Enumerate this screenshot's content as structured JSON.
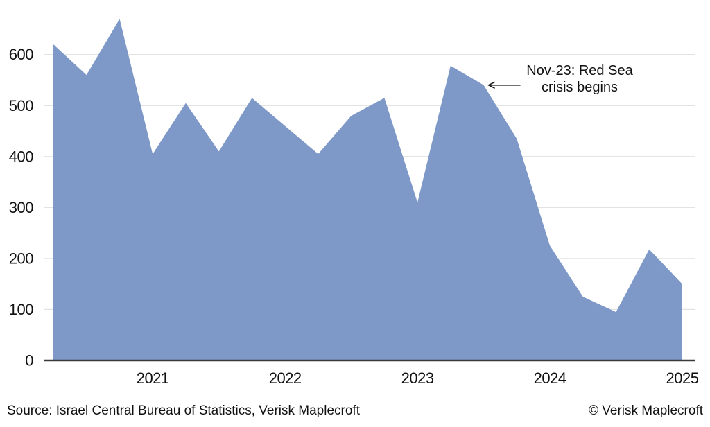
{
  "chart_data": {
    "type": "area",
    "title": "",
    "xlabel": "",
    "ylabel": "",
    "x": [
      "2020-Q2",
      "2020-Q3",
      "2020-Q4",
      "2021-Q1",
      "2021-Q2",
      "2021-Q3",
      "2021-Q4",
      "2022-Q1",
      "2022-Q2",
      "2022-Q3",
      "2022-Q4",
      "2023-Q1",
      "2023-Q2",
      "2023-Q3",
      "2023-Q4",
      "2024-Q1",
      "2024-Q2",
      "2024-Q3",
      "2024-Q4",
      "2025-Q1"
    ],
    "values": [
      620,
      560,
      670,
      405,
      505,
      410,
      515,
      460,
      405,
      480,
      515,
      310,
      578,
      540,
      435,
      225,
      125,
      95,
      218,
      150
    ],
    "xtick_labels": [
      "2021",
      "2022",
      "2023",
      "2024",
      "2025"
    ],
    "ytick_values": [
      0,
      100,
      200,
      300,
      400,
      500,
      600
    ],
    "ylim": [
      0,
      680
    ],
    "grid": "horizontal",
    "legend": "none",
    "annotation": {
      "line1": "Nov-23: Red Sea",
      "line2": "crisis begins",
      "arrow_target_index": 13
    }
  },
  "colors": {
    "area": "#7E99C8",
    "axis": "#3a3a3a",
    "grid": "#e3e3e3",
    "text": "#111111",
    "background": "#ffffff"
  },
  "footer": {
    "source": "Source: Israel Central Bureau of Statistics, Verisk Maplecroft",
    "copyright": "© Verisk Maplecroft"
  }
}
